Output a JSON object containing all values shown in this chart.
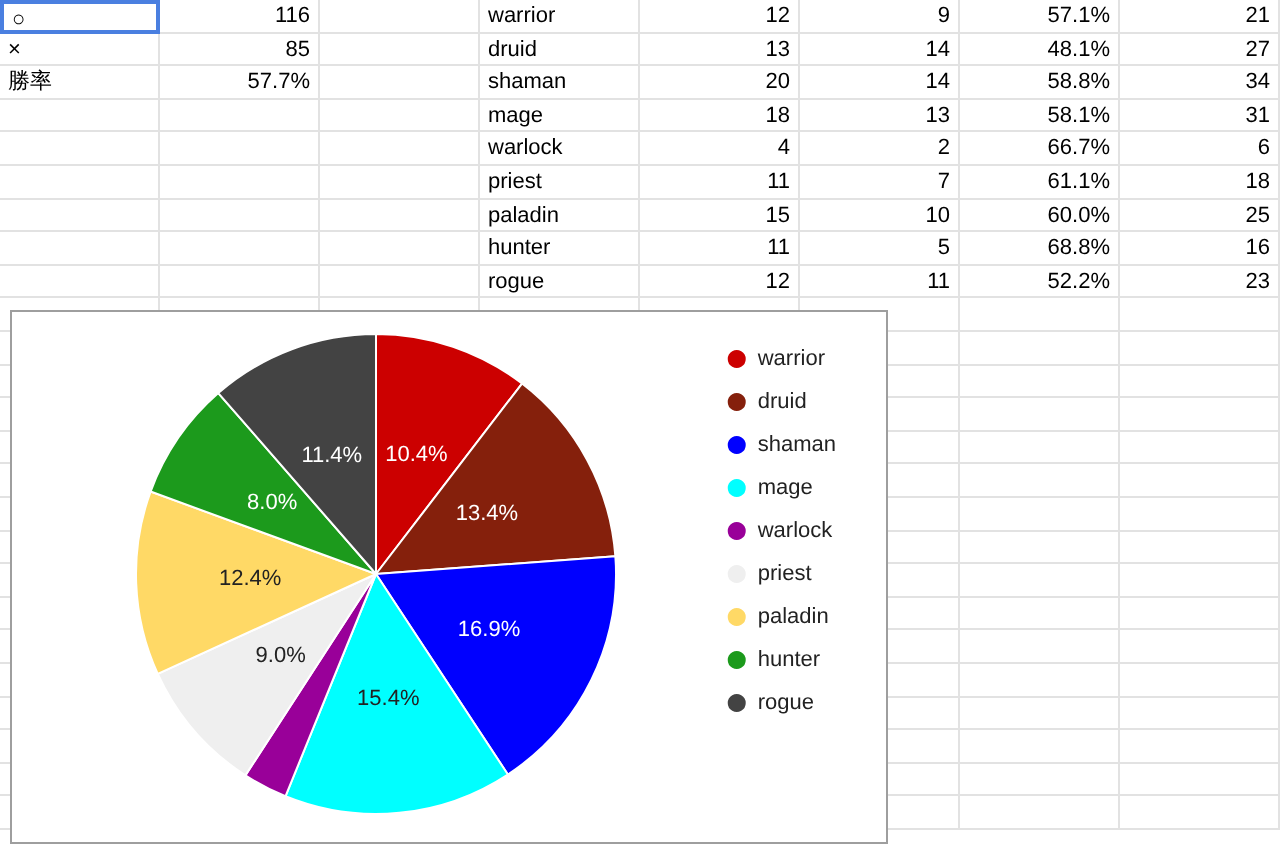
{
  "chart_data": [
    {
      "type": "other",
      "annotations": [
        "○",
        "116",
        "×",
        "85",
        "勝率",
        "57.7%"
      ],
      "categories": [
        "warrior",
        "druid",
        "shaman",
        "mage",
        "warlock",
        "priest",
        "paladin",
        "hunter",
        "rogue"
      ],
      "cell_labels": [
        [
          "12",
          "9",
          "57.1%",
          "21"
        ],
        [
          "13",
          "14",
          "48.1%",
          "27"
        ],
        [
          "20",
          "14",
          "58.8%",
          "34"
        ],
        [
          "18",
          "13",
          "58.1%",
          "31"
        ],
        [
          "4",
          "2",
          "66.7%",
          "6"
        ],
        [
          "11",
          "7",
          "61.1%",
          "18"
        ],
        [
          "15",
          "10",
          "60.0%",
          "25"
        ],
        [
          "11",
          "5",
          "68.8%",
          "16"
        ],
        [
          "12",
          "11",
          "52.2%",
          "23"
        ]
      ]
    },
    {
      "type": "pie",
      "categories": [
        "warrior",
        "druid",
        "shaman",
        "mage",
        "warlock",
        "priest",
        "paladin",
        "hunter",
        "rogue"
      ],
      "values": [
        10.4,
        13.4,
        16.9,
        15.4,
        3.0,
        9.0,
        12.4,
        8.0,
        11.4
      ],
      "value_labels": [
        "10.4%",
        "13.4%",
        "16.9%",
        "15.4%",
        null,
        "9.0%",
        "12.4%",
        "8.0%",
        "11.4%"
      ],
      "colors": [
        "#cc0000",
        "#85200c",
        "#0000ff",
        "#00ffff",
        "#990099",
        "#efefef",
        "#ffd966",
        "#1c9a1c",
        "#434343"
      ],
      "legend": "right"
    }
  ]
}
